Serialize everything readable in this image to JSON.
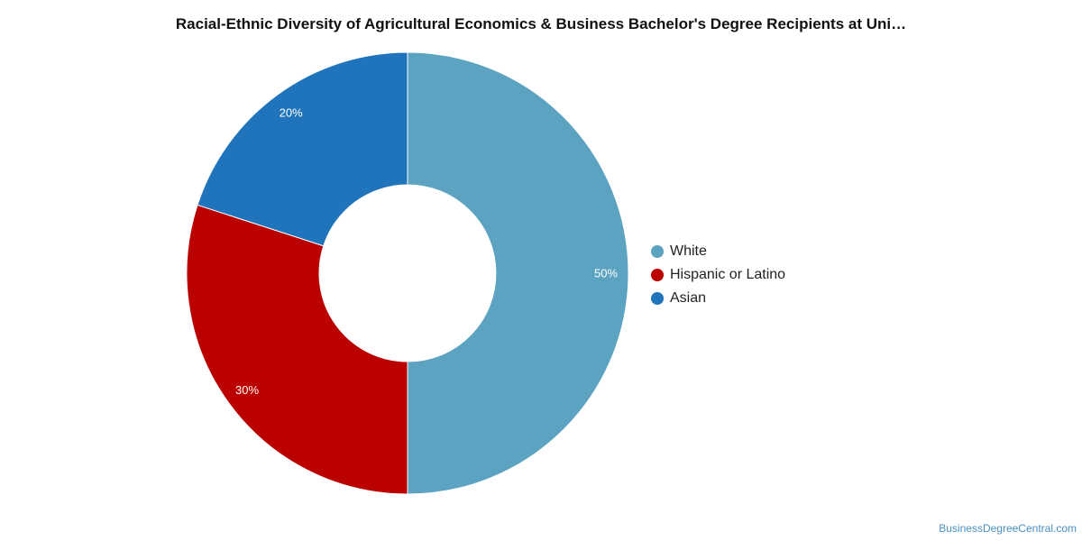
{
  "chart_data": {
    "type": "pie",
    "variant": "donut",
    "title": "Racial-Ethnic Diversity of Agricultural Economics & Business Bachelor's Degree Recipients at Uni…",
    "categories": [
      "White",
      "Hispanic or Latino",
      "Asian"
    ],
    "values": [
      50,
      30,
      20
    ],
    "value_labels": [
      "50%",
      "30%",
      "20%"
    ],
    "colors": [
      "#5ba3c0",
      "#bb0000",
      "#1f74bb"
    ],
    "legend_position": "right"
  },
  "watermark": "BusinessDegreeCentral.com"
}
